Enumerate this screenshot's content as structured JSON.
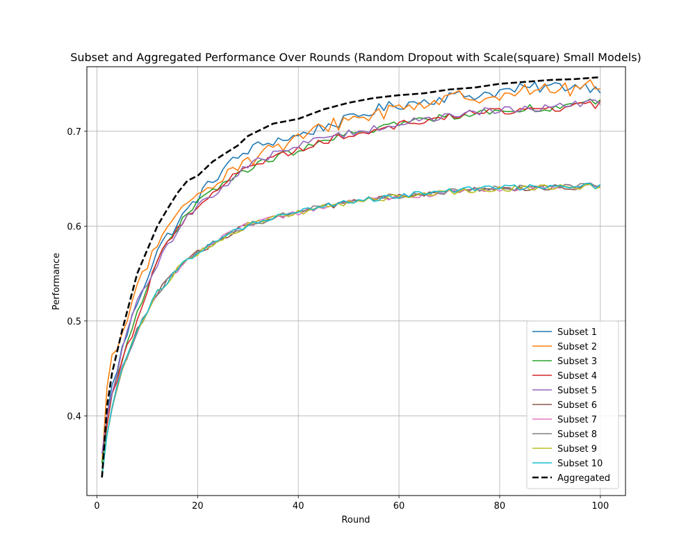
{
  "chart_data": {
    "type": "line",
    "title": "Subset and Aggregated Performance Over Rounds (Random Dropout with Scale(square) Small Models)",
    "xlabel": "Round",
    "ylabel": "Performance",
    "xlim": [
      -2,
      105
    ],
    "ylim": [
      0.316,
      0.768
    ],
    "x_ticks": [
      0,
      20,
      40,
      60,
      80,
      100
    ],
    "y_ticks": [
      0.4,
      0.5,
      0.6,
      0.7
    ],
    "x_tick_labels": [
      "0",
      "20",
      "40",
      "60",
      "80",
      "100"
    ],
    "y_tick_labels": [
      "0.4",
      "0.5",
      "0.6",
      "0.7"
    ],
    "grid": true,
    "legend_position": "lower-right",
    "series_model": "Each series is listed as anchor rounds and anchor values (data units), linearly interpolated across rounds 1-100; \"noise\" is the typical round-to-round fluctuation amplitude in performance units.",
    "series": [
      {
        "name": "Subset 1",
        "color": "#1f77b4",
        "style": "solid",
        "noise": 0.006,
        "anchors_x": [
          1,
          2,
          3,
          5,
          8,
          12,
          17,
          20,
          25,
          30,
          35,
          40,
          45,
          50,
          55,
          60,
          65,
          70,
          75,
          80,
          85,
          90,
          95,
          100
        ],
        "anchors_y": [
          0.34,
          0.4,
          0.43,
          0.47,
          0.52,
          0.575,
          0.61,
          0.63,
          0.66,
          0.68,
          0.69,
          0.695,
          0.705,
          0.712,
          0.722,
          0.728,
          0.732,
          0.737,
          0.738,
          0.742,
          0.745,
          0.747,
          0.748,
          0.746
        ]
      },
      {
        "name": "Subset 2",
        "color": "#ff7f0e",
        "style": "solid",
        "noise": 0.008,
        "anchors_x": [
          1,
          2,
          3,
          5,
          8,
          12,
          17,
          20,
          25,
          30,
          35,
          40,
          45,
          50,
          55,
          60,
          65,
          70,
          75,
          80,
          85,
          90,
          95,
          100
        ],
        "anchors_y": [
          0.35,
          0.43,
          0.46,
          0.48,
          0.54,
          0.58,
          0.615,
          0.635,
          0.655,
          0.67,
          0.682,
          0.69,
          0.705,
          0.712,
          0.718,
          0.725,
          0.73,
          0.734,
          0.737,
          0.74,
          0.742,
          0.744,
          0.745,
          0.747
        ]
      },
      {
        "name": "Subset 3",
        "color": "#2ca02c",
        "style": "solid",
        "noise": 0.004,
        "anchors_x": [
          1,
          2,
          3,
          5,
          8,
          12,
          17,
          20,
          25,
          30,
          35,
          40,
          45,
          50,
          55,
          60,
          65,
          70,
          75,
          80,
          85,
          90,
          95,
          100
        ],
        "anchors_y": [
          0.35,
          0.39,
          0.42,
          0.46,
          0.51,
          0.565,
          0.605,
          0.625,
          0.645,
          0.66,
          0.672,
          0.68,
          0.688,
          0.697,
          0.703,
          0.708,
          0.712,
          0.716,
          0.719,
          0.722,
          0.724,
          0.725,
          0.727,
          0.732
        ]
      },
      {
        "name": "Subset 4",
        "color": "#d62728",
        "style": "solid",
        "noise": 0.004,
        "anchors_x": [
          1,
          2,
          3,
          5,
          8,
          12,
          17,
          20,
          25,
          30,
          35,
          40,
          45,
          50,
          55,
          60,
          65,
          70,
          75,
          80,
          85,
          90,
          95,
          100
        ],
        "anchors_y": [
          0.36,
          0.39,
          0.42,
          0.46,
          0.5,
          0.565,
          0.605,
          0.622,
          0.645,
          0.662,
          0.673,
          0.681,
          0.69,
          0.695,
          0.702,
          0.707,
          0.711,
          0.716,
          0.719,
          0.721,
          0.723,
          0.724,
          0.726,
          0.728
        ]
      },
      {
        "name": "Subset 5",
        "color": "#9467bd",
        "style": "solid",
        "noise": 0.004,
        "anchors_x": [
          1,
          2,
          3,
          5,
          8,
          12,
          17,
          20,
          25,
          30,
          35,
          40,
          45,
          50,
          55,
          60,
          65,
          70,
          75,
          80,
          85,
          90,
          95,
          100
        ],
        "anchors_y": [
          0.36,
          0.4,
          0.42,
          0.47,
          0.52,
          0.56,
          0.605,
          0.622,
          0.64,
          0.665,
          0.675,
          0.685,
          0.693,
          0.698,
          0.703,
          0.708,
          0.712,
          0.716,
          0.72,
          0.722,
          0.724,
          0.726,
          0.728,
          0.73
        ]
      },
      {
        "name": "Subset 6",
        "color": "#8c564b",
        "style": "solid",
        "noise": 0.003,
        "anchors_x": [
          1,
          2,
          3,
          5,
          8,
          12,
          17,
          20,
          25,
          30,
          35,
          40,
          45,
          50,
          55,
          60,
          65,
          70,
          75,
          80,
          85,
          90,
          95,
          100
        ],
        "anchors_y": [
          0.34,
          0.38,
          0.41,
          0.45,
          0.49,
          0.53,
          0.56,
          0.572,
          0.588,
          0.601,
          0.608,
          0.614,
          0.62,
          0.625,
          0.628,
          0.631,
          0.633,
          0.636,
          0.638,
          0.639,
          0.64,
          0.641,
          0.641,
          0.641
        ]
      },
      {
        "name": "Subset 7",
        "color": "#e377c2",
        "style": "solid",
        "noise": 0.003,
        "anchors_x": [
          1,
          2,
          3,
          5,
          8,
          12,
          17,
          20,
          25,
          30,
          35,
          40,
          45,
          50,
          55,
          60,
          65,
          70,
          75,
          80,
          85,
          90,
          95,
          100
        ],
        "anchors_y": [
          0.34,
          0.38,
          0.41,
          0.45,
          0.49,
          0.53,
          0.56,
          0.572,
          0.588,
          0.601,
          0.608,
          0.614,
          0.62,
          0.625,
          0.628,
          0.631,
          0.633,
          0.636,
          0.638,
          0.639,
          0.64,
          0.641,
          0.641,
          0.641
        ]
      },
      {
        "name": "Subset 8",
        "color": "#7f7f7f",
        "style": "solid",
        "noise": 0.003,
        "anchors_x": [
          1,
          2,
          3,
          5,
          8,
          12,
          17,
          20,
          25,
          30,
          35,
          40,
          45,
          50,
          55,
          60,
          65,
          70,
          75,
          80,
          85,
          90,
          95,
          100
        ],
        "anchors_y": [
          0.34,
          0.38,
          0.41,
          0.45,
          0.49,
          0.53,
          0.56,
          0.572,
          0.588,
          0.601,
          0.608,
          0.616,
          0.621,
          0.626,
          0.629,
          0.632,
          0.634,
          0.637,
          0.638,
          0.64,
          0.641,
          0.642,
          0.642,
          0.643
        ]
      },
      {
        "name": "Subset 9",
        "color": "#bcbd22",
        "style": "solid",
        "noise": 0.003,
        "anchors_x": [
          1,
          2,
          3,
          5,
          8,
          12,
          17,
          20,
          25,
          30,
          35,
          40,
          45,
          50,
          55,
          60,
          65,
          70,
          75,
          80,
          85,
          90,
          95,
          100
        ],
        "anchors_y": [
          0.34,
          0.38,
          0.41,
          0.45,
          0.49,
          0.53,
          0.56,
          0.572,
          0.588,
          0.601,
          0.608,
          0.614,
          0.62,
          0.625,
          0.628,
          0.631,
          0.633,
          0.636,
          0.638,
          0.639,
          0.64,
          0.641,
          0.641,
          0.641
        ]
      },
      {
        "name": "Subset 10",
        "color": "#17becf",
        "style": "solid",
        "noise": 0.003,
        "anchors_x": [
          1,
          2,
          3,
          5,
          8,
          12,
          17,
          20,
          25,
          30,
          35,
          40,
          45,
          50,
          55,
          60,
          65,
          70,
          75,
          80,
          85,
          90,
          95,
          100
        ],
        "anchors_y": [
          0.335,
          0.38,
          0.41,
          0.45,
          0.49,
          0.53,
          0.56,
          0.572,
          0.588,
          0.601,
          0.609,
          0.615,
          0.621,
          0.626,
          0.629,
          0.632,
          0.634,
          0.637,
          0.639,
          0.64,
          0.641,
          0.641,
          0.642,
          0.642
        ]
      },
      {
        "name": "Aggregated",
        "color": "#000000",
        "style": "dashed",
        "noise": 0.0,
        "anchors_x": [
          1,
          2,
          3,
          5,
          8,
          10,
          12,
          14,
          16,
          18,
          20,
          23,
          25,
          28,
          30,
          35,
          40,
          45,
          50,
          55,
          60,
          65,
          70,
          75,
          80,
          85,
          90,
          95,
          100
        ],
        "anchors_y": [
          0.335,
          0.41,
          0.445,
          0.49,
          0.55,
          0.575,
          0.6,
          0.618,
          0.635,
          0.648,
          0.653,
          0.668,
          0.675,
          0.685,
          0.695,
          0.708,
          0.713,
          0.723,
          0.73,
          0.735,
          0.738,
          0.74,
          0.744,
          0.746,
          0.75,
          0.752,
          0.754,
          0.755,
          0.757
        ]
      }
    ]
  }
}
